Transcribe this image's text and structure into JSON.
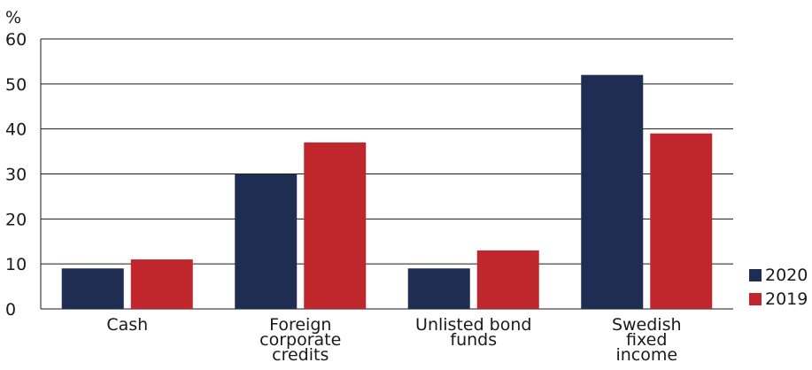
{
  "chart_data": {
    "type": "bar",
    "title": "",
    "ylabel": "%",
    "xlabel": "",
    "ylim": [
      0,
      60
    ],
    "yticks": [
      0,
      10,
      20,
      30,
      40,
      50,
      60
    ],
    "grid": true,
    "legend_position": "bottom-right",
    "categories": [
      [
        "Cash"
      ],
      [
        "Foreign",
        "corporate",
        "credits"
      ],
      [
        "Unlisted bond",
        "funds"
      ],
      [
        "Swedish",
        "fixed",
        "income"
      ]
    ],
    "series": [
      {
        "name": "2020",
        "color": "#1f2d52",
        "values": [
          9,
          30,
          9,
          52
        ]
      },
      {
        "name": "2019",
        "color": "#c0272d",
        "values": [
          11,
          37,
          13,
          39
        ]
      }
    ]
  }
}
